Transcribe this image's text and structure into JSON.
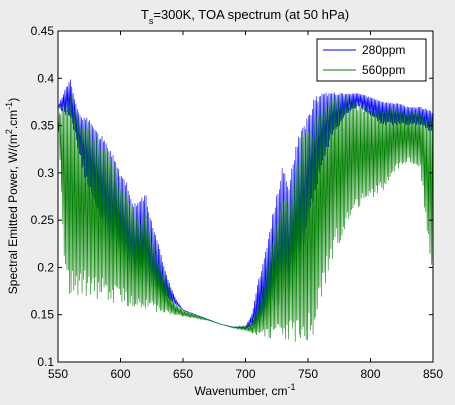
{
  "chart_data": {
    "type": "line",
    "title": "T",
    "title_sub": "s",
    "title_rest": "=300K, TOA spectrum (at 50 hPa)",
    "xlabel": "Wavenumber, cm",
    "xlabel_sup": "-1",
    "ylabel": "Spectral Emitted Power, W/(m",
    "ylabel_sup1": "2",
    "ylabel_mid": ".cm",
    "ylabel_sup2": "-1",
    "ylabel_end": ")",
    "xlim": [
      550,
      850
    ],
    "ylim": [
      0.1,
      0.45
    ],
    "xticks": [
      "550",
      "600",
      "650",
      "700",
      "750",
      "800",
      "850"
    ],
    "yticks": [
      "0.1",
      "0.15",
      "0.2",
      "0.25",
      "0.3",
      "0.35",
      "0.4",
      "0.45"
    ],
    "xtick_values": [
      550,
      600,
      650,
      700,
      750,
      800,
      850
    ],
    "ytick_values": [
      0.1,
      0.15,
      0.2,
      0.25,
      0.3,
      0.35,
      0.4,
      0.45
    ],
    "grid": false,
    "legend_position": "top-right",
    "series": [
      {
        "name": "280ppm",
        "color": "#0000ff",
        "envelope_top": [
          [
            550,
            0.37
          ],
          [
            556,
            0.39
          ],
          [
            560,
            0.4
          ],
          [
            565,
            0.37
          ],
          [
            570,
            0.36
          ],
          [
            575,
            0.36
          ],
          [
            580,
            0.345
          ],
          [
            585,
            0.34
          ],
          [
            590,
            0.33
          ],
          [
            595,
            0.32
          ],
          [
            600,
            0.3
          ],
          [
            605,
            0.29
          ],
          [
            610,
            0.27
          ],
          [
            615,
            0.27
          ],
          [
            620,
            0.28
          ],
          [
            625,
            0.25
          ],
          [
            630,
            0.23
          ],
          [
            635,
            0.2
          ],
          [
            640,
            0.18
          ],
          [
            645,
            0.165
          ],
          [
            650,
            0.155
          ],
          [
            660,
            0.15
          ],
          [
            670,
            0.145
          ],
          [
            680,
            0.14
          ],
          [
            690,
            0.137
          ],
          [
            700,
            0.138
          ],
          [
            705,
            0.15
          ],
          [
            710,
            0.185
          ],
          [
            715,
            0.21
          ],
          [
            720,
            0.245
          ],
          [
            725,
            0.28
          ],
          [
            730,
            0.31
          ],
          [
            735,
            0.29
          ],
          [
            740,
            0.33
          ],
          [
            745,
            0.35
          ],
          [
            750,
            0.36
          ],
          [
            755,
            0.38
          ],
          [
            760,
            0.385
          ],
          [
            770,
            0.385
          ],
          [
            780,
            0.385
          ],
          [
            790,
            0.385
          ],
          [
            800,
            0.38
          ],
          [
            810,
            0.375
          ],
          [
            820,
            0.375
          ],
          [
            830,
            0.37
          ],
          [
            840,
            0.37
          ],
          [
            850,
            0.365
          ]
        ],
        "envelope_bottom": [
          [
            550,
            0.37
          ],
          [
            556,
            0.36
          ],
          [
            560,
            0.36
          ],
          [
            570,
            0.3
          ],
          [
            580,
            0.26
          ],
          [
            590,
            0.23
          ],
          [
            600,
            0.21
          ],
          [
            610,
            0.19
          ],
          [
            620,
            0.18
          ],
          [
            630,
            0.17
          ],
          [
            640,
            0.165
          ],
          [
            650,
            0.155
          ],
          [
            660,
            0.15
          ],
          [
            670,
            0.145
          ],
          [
            680,
            0.14
          ],
          [
            690,
            0.137
          ],
          [
            700,
            0.135
          ],
          [
            710,
            0.14
          ],
          [
            720,
            0.15
          ],
          [
            730,
            0.16
          ],
          [
            740,
            0.18
          ],
          [
            750,
            0.24
          ],
          [
            760,
            0.3
          ],
          [
            770,
            0.34
          ],
          [
            780,
            0.36
          ],
          [
            790,
            0.37
          ],
          [
            800,
            0.36
          ],
          [
            810,
            0.35
          ],
          [
            820,
            0.35
          ],
          [
            830,
            0.35
          ],
          [
            840,
            0.35
          ],
          [
            850,
            0.34
          ]
        ]
      },
      {
        "name": "560ppm",
        "color": "#008000",
        "envelope_top": [
          [
            550,
            0.36
          ],
          [
            556,
            0.38
          ],
          [
            560,
            0.385
          ],
          [
            565,
            0.365
          ],
          [
            570,
            0.355
          ],
          [
            575,
            0.355
          ],
          [
            580,
            0.34
          ],
          [
            585,
            0.335
          ],
          [
            590,
            0.325
          ],
          [
            595,
            0.31
          ],
          [
            600,
            0.29
          ],
          [
            605,
            0.28
          ],
          [
            610,
            0.26
          ],
          [
            615,
            0.25
          ],
          [
            620,
            0.26
          ],
          [
            625,
            0.23
          ],
          [
            630,
            0.21
          ],
          [
            635,
            0.19
          ],
          [
            640,
            0.17
          ],
          [
            645,
            0.16
          ],
          [
            650,
            0.155
          ],
          [
            660,
            0.15
          ],
          [
            670,
            0.145
          ],
          [
            680,
            0.14
          ],
          [
            690,
            0.137
          ],
          [
            700,
            0.138
          ],
          [
            705,
            0.14
          ],
          [
            710,
            0.16
          ],
          [
            715,
            0.18
          ],
          [
            720,
            0.22
          ],
          [
            725,
            0.25
          ],
          [
            730,
            0.28
          ],
          [
            735,
            0.27
          ],
          [
            740,
            0.31
          ],
          [
            745,
            0.34
          ],
          [
            750,
            0.35
          ],
          [
            755,
            0.36
          ],
          [
            760,
            0.375
          ],
          [
            770,
            0.38
          ],
          [
            780,
            0.38
          ],
          [
            790,
            0.375
          ],
          [
            800,
            0.37
          ],
          [
            810,
            0.37
          ],
          [
            820,
            0.37
          ],
          [
            830,
            0.365
          ],
          [
            840,
            0.365
          ],
          [
            850,
            0.36
          ]
        ],
        "envelope_bottom": [
          [
            550,
            0.36
          ],
          [
            556,
            0.18
          ],
          [
            560,
            0.17
          ],
          [
            570,
            0.17
          ],
          [
            580,
            0.166
          ],
          [
            590,
            0.163
          ],
          [
            600,
            0.16
          ],
          [
            610,
            0.158
          ],
          [
            620,
            0.155
          ],
          [
            630,
            0.152
          ],
          [
            640,
            0.15
          ],
          [
            650,
            0.148
          ],
          [
            660,
            0.146
          ],
          [
            670,
            0.144
          ],
          [
            680,
            0.14
          ],
          [
            690,
            0.136
          ],
          [
            700,
            0.133
          ],
          [
            710,
            0.128
          ],
          [
            720,
            0.125
          ],
          [
            730,
            0.122
          ],
          [
            740,
            0.12
          ],
          [
            750,
            0.117
          ],
          [
            755,
            0.115
          ],
          [
            760,
            0.16
          ],
          [
            770,
            0.21
          ],
          [
            780,
            0.24
          ],
          [
            790,
            0.26
          ],
          [
            800,
            0.27
          ],
          [
            810,
            0.28
          ],
          [
            820,
            0.3
          ],
          [
            830,
            0.31
          ],
          [
            840,
            0.3
          ],
          [
            850,
            0.18
          ]
        ]
      }
    ]
  }
}
